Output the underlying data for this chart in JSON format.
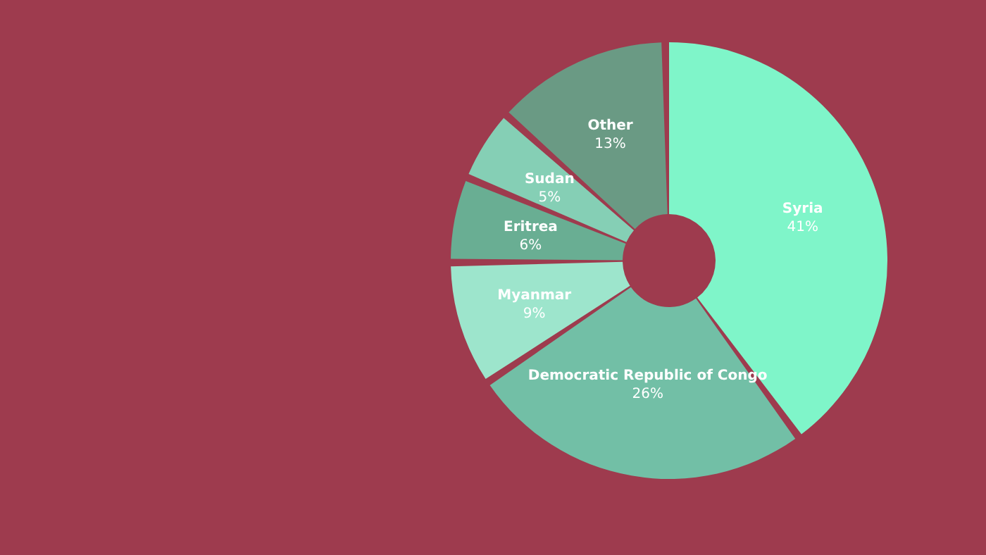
{
  "chart_data": {
    "type": "donut",
    "categories": [
      "Syria",
      "Democratic Republic of Congo",
      "Myanmar",
      "Eritrea",
      "Sudan",
      "Other"
    ],
    "values": [
      41,
      26,
      9,
      6,
      5,
      13
    ],
    "colors": [
      "#7ff5c9",
      "#72bfa6",
      "#9de5cc",
      "#69ae93",
      "#85cfb5",
      "#6a9a84"
    ],
    "value_labels": [
      "41%",
      "26%",
      "9%",
      "6%",
      "5%",
      "13%"
    ]
  }
}
